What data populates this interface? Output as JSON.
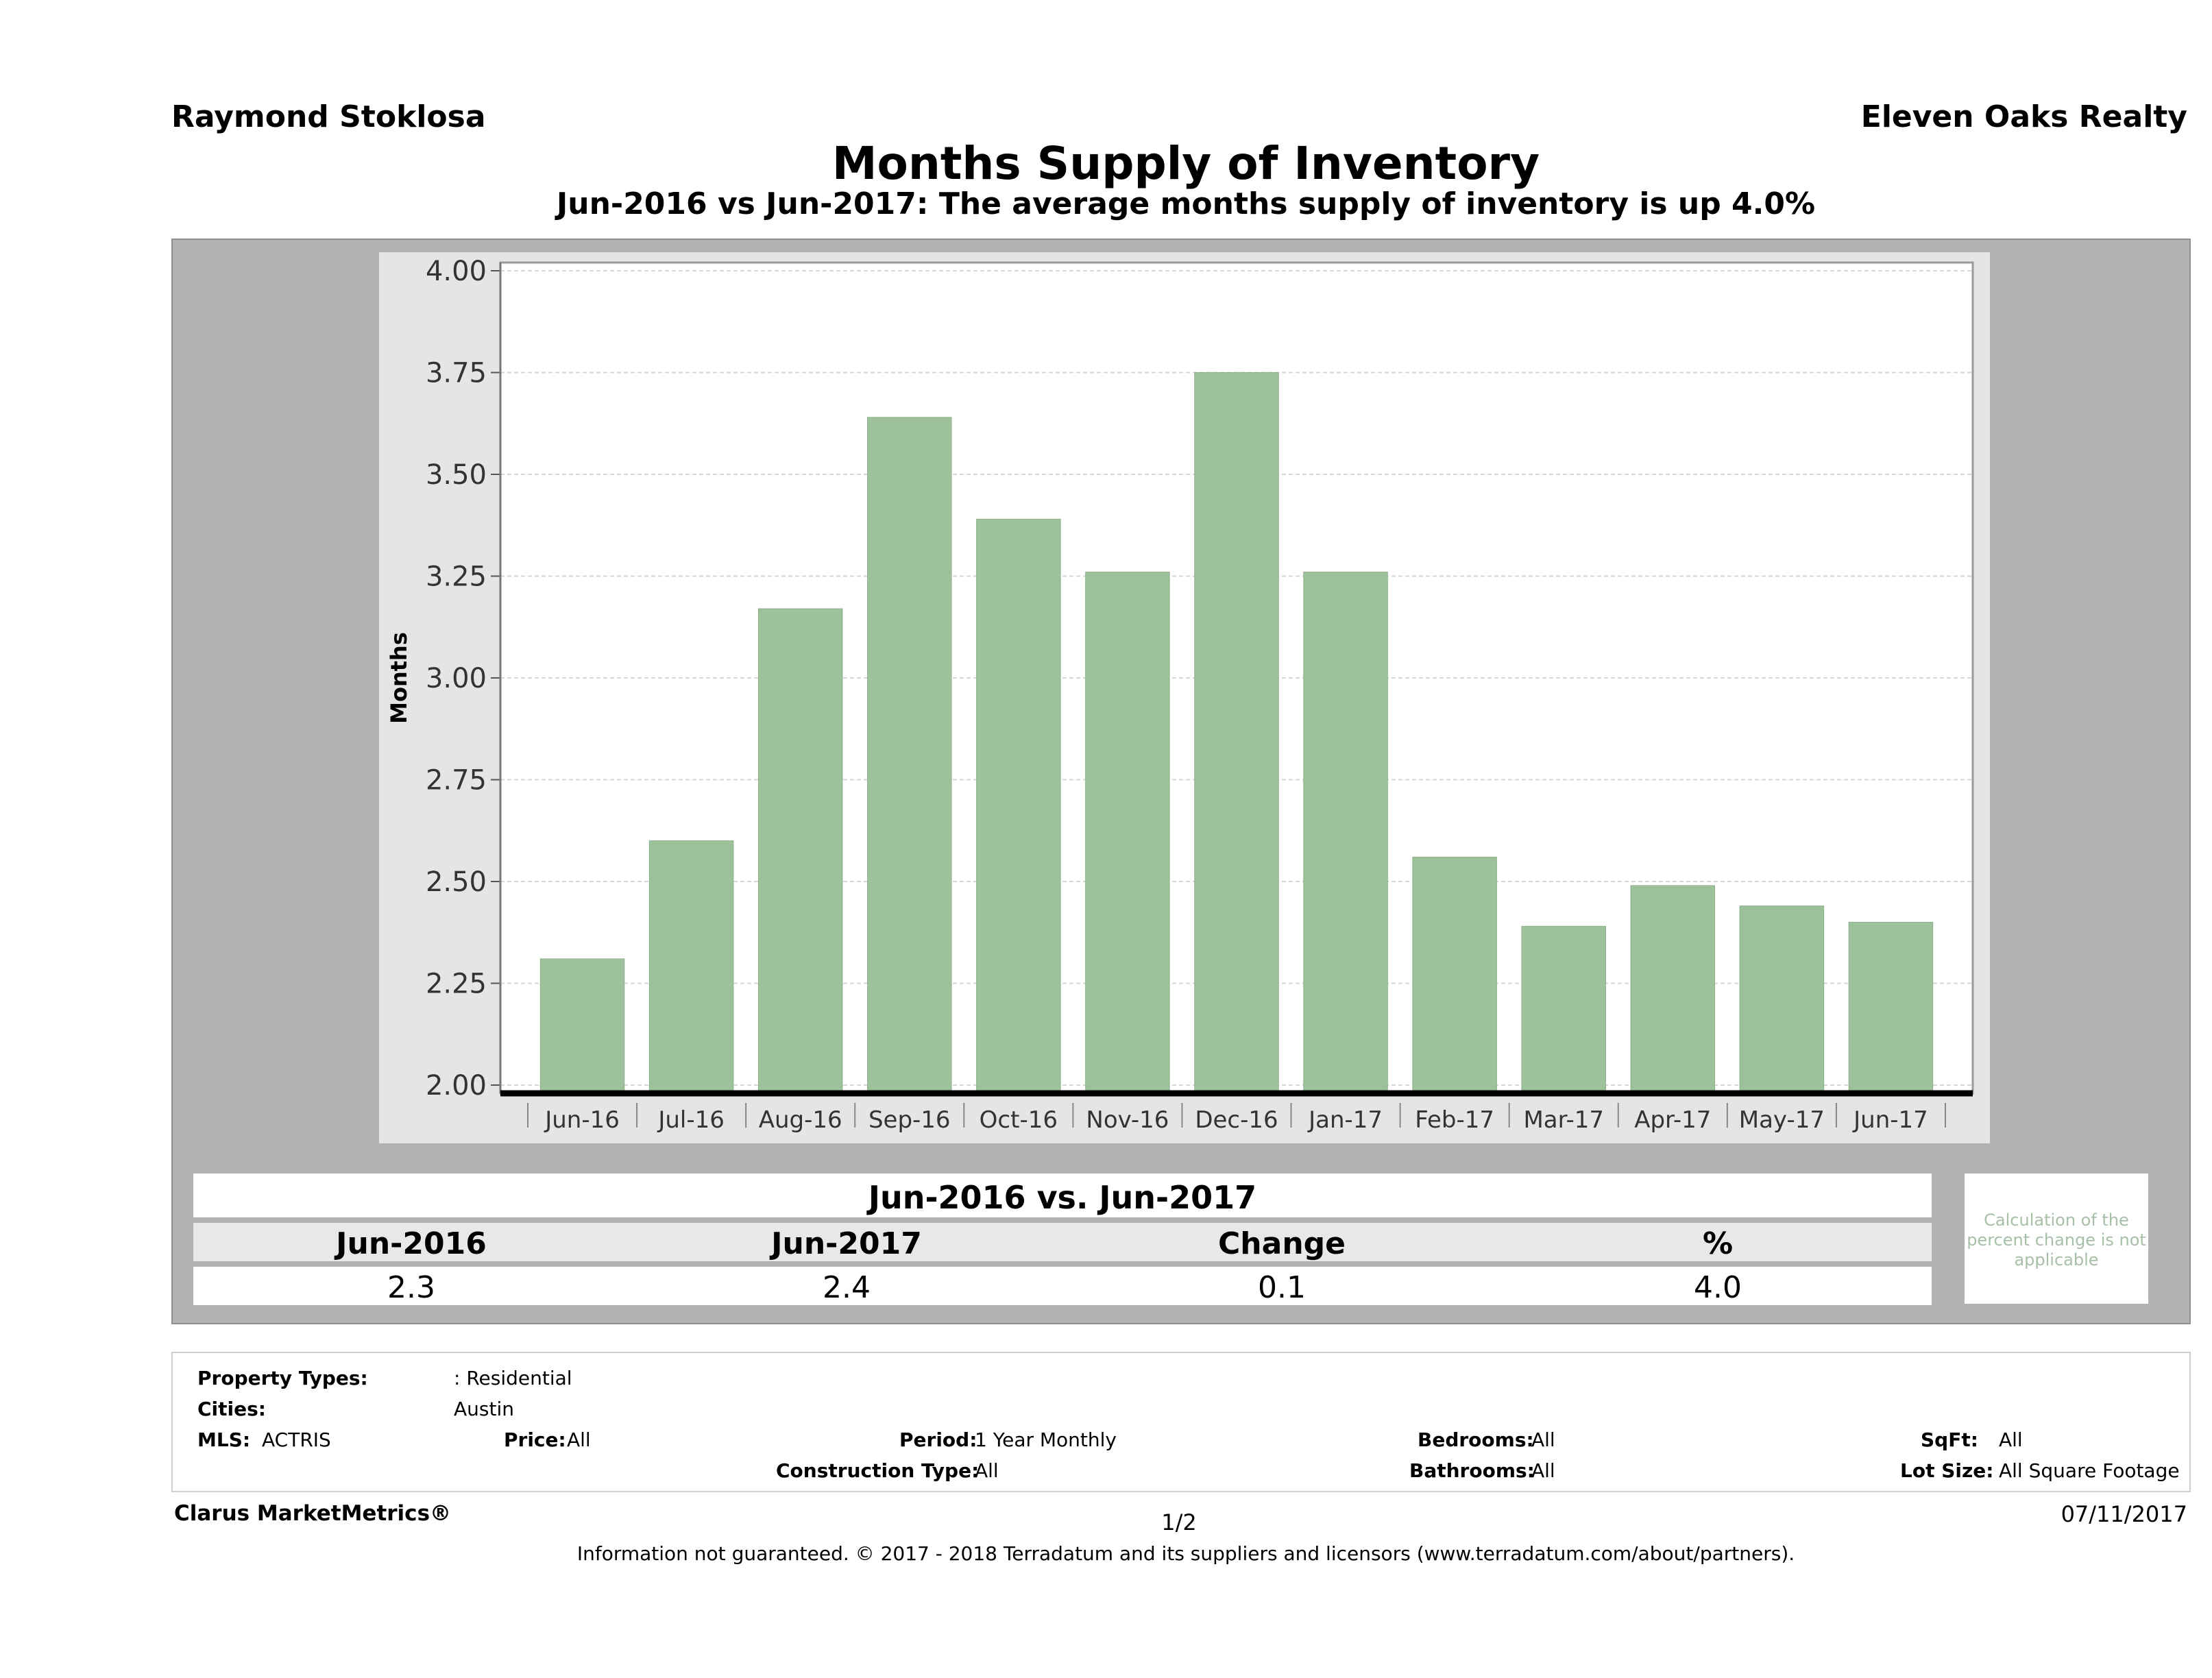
{
  "header": {
    "agent_name": "Raymond Stoklosa",
    "company": "Eleven Oaks Realty",
    "title": "Months Supply of Inventory",
    "subtitle": "Jun-2016 vs Jun-2017: The average months supply of inventory is up 4.0%"
  },
  "chart_data": {
    "type": "bar",
    "categories": [
      "Jun-16",
      "Jul-16",
      "Aug-16",
      "Sep-16",
      "Oct-16",
      "Nov-16",
      "Dec-16",
      "Jan-17",
      "Feb-17",
      "Mar-17",
      "Apr-17",
      "May-17",
      "Jun-17"
    ],
    "values": [
      2.31,
      2.6,
      3.17,
      3.64,
      3.39,
      3.26,
      3.75,
      3.26,
      2.56,
      2.39,
      2.49,
      2.44,
      2.4
    ],
    "ylabel": "Months",
    "xlabel": "",
    "ylim": [
      2.0,
      4.0
    ],
    "yticks": [
      "2.00",
      "2.25",
      "2.50",
      "2.75",
      "3.00",
      "3.25",
      "3.50",
      "3.75",
      "4.00"
    ],
    "grid": true,
    "bar_color": "#9dc19a"
  },
  "summary": {
    "heading": "Jun-2016 vs. Jun-2017",
    "columns": [
      "Jun-2016",
      "Jun-2017",
      "Change",
      "%"
    ],
    "values": [
      "2.3",
      "2.4",
      "0.1",
      "4.0"
    ],
    "note": "Calculation of the percent change is not applicable"
  },
  "filters": {
    "property_types_label": "Property Types:",
    "property_types_value": ": Residential",
    "cities_label": "Cities:",
    "cities_value": "Austin",
    "mls_label": "MLS:",
    "mls_value": "ACTRIS",
    "price_label": "Price:",
    "price_value": "All",
    "period_label": "Period:",
    "period_value": "1 Year Monthly",
    "construction_label": "Construction Type:",
    "construction_value": "All",
    "bedrooms_label": "Bedrooms:",
    "bedrooms_value": "All",
    "bathrooms_label": "Bathrooms:",
    "bathrooms_value": "All",
    "sqft_label": "SqFt:",
    "sqft_value": "All",
    "lotsize_label": "Lot Size:",
    "lotsize_value": "All Square Footage"
  },
  "footer": {
    "brand": "Clarus MarketMetrics®",
    "page": "1/2",
    "date": "07/11/2017",
    "disclaimer": "Information not guaranteed. © 2017 - 2018 Terradatum and its suppliers and licensors (www.terradatum.com/about/partners)."
  }
}
